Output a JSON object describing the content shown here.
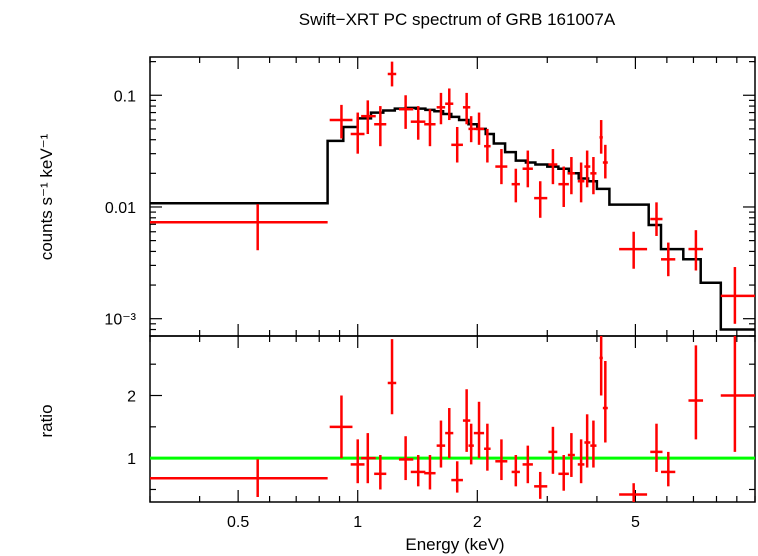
{
  "chart_data": [
    {
      "type": "scatter",
      "title": "Swift−XRT PC spectrum of GRB 161007A",
      "xlabel": "Energy (keV)",
      "ylabel": "counts s⁻¹ keV⁻¹",
      "xscale": "log",
      "yscale": "log",
      "xlim": [
        0.3,
        10
      ],
      "ylim": [
        0.0007,
        0.22
      ],
      "grid": false,
      "x_ticks": [
        "0.5",
        "1",
        "2",
        "5"
      ],
      "y_ticks": [
        "0.1",
        "0.01",
        "10⁻³"
      ],
      "series": [
        {
          "style": "crosses",
          "color": "#ff0000",
          "points": [
            {
              "x": 0.56,
              "xlo": 0.3,
              "xhi": 0.84,
              "y": 0.0073,
              "ylo": 0.0041,
              "yhi": 0.0106
            },
            {
              "x": 0.91,
              "xlo": 0.85,
              "xhi": 0.97,
              "y": 0.06,
              "ylo": 0.041,
              "yhi": 0.082
            },
            {
              "x": 1.0,
              "xlo": 0.96,
              "xhi": 1.04,
              "y": 0.045,
              "ylo": 0.03,
              "yhi": 0.07
            },
            {
              "x": 1.06,
              "xlo": 1.02,
              "xhi": 1.11,
              "y": 0.065,
              "ylo": 0.045,
              "yhi": 0.09
            },
            {
              "x": 1.14,
              "xlo": 1.1,
              "xhi": 1.18,
              "y": 0.055,
              "ylo": 0.035,
              "yhi": 0.08
            },
            {
              "x": 1.22,
              "xlo": 1.19,
              "xhi": 1.25,
              "y": 0.155,
              "ylo": 0.12,
              "yhi": 0.2
            },
            {
              "x": 1.32,
              "xlo": 1.27,
              "xhi": 1.38,
              "y": 0.075,
              "ylo": 0.05,
              "yhi": 0.1
            },
            {
              "x": 1.42,
              "xlo": 1.36,
              "xhi": 1.48,
              "y": 0.058,
              "ylo": 0.04,
              "yhi": 0.08
            },
            {
              "x": 1.52,
              "xlo": 1.47,
              "xhi": 1.57,
              "y": 0.055,
              "ylo": 0.035,
              "yhi": 0.075
            },
            {
              "x": 1.62,
              "xlo": 1.58,
              "xhi": 1.66,
              "y": 0.078,
              "ylo": 0.055,
              "yhi": 0.105
            },
            {
              "x": 1.7,
              "xlo": 1.66,
              "xhi": 1.74,
              "y": 0.084,
              "ylo": 0.06,
              "yhi": 0.115
            },
            {
              "x": 1.78,
              "xlo": 1.72,
              "xhi": 1.84,
              "y": 0.036,
              "ylo": 0.025,
              "yhi": 0.052
            },
            {
              "x": 1.88,
              "xlo": 1.84,
              "xhi": 1.92,
              "y": 0.078,
              "ylo": 0.055,
              "yhi": 0.105
            },
            {
              "x": 1.93,
              "xlo": 1.9,
              "xhi": 1.96,
              "y": 0.05,
              "ylo": 0.038,
              "yhi": 0.065
            },
            {
              "x": 2.02,
              "xlo": 1.96,
              "xhi": 2.08,
              "y": 0.05,
              "ylo": 0.036,
              "yhi": 0.07
            },
            {
              "x": 2.12,
              "xlo": 2.08,
              "xhi": 2.16,
              "y": 0.035,
              "ylo": 0.025,
              "yhi": 0.05
            },
            {
              "x": 2.3,
              "xlo": 2.22,
              "xhi": 2.38,
              "y": 0.023,
              "ylo": 0.016,
              "yhi": 0.033
            },
            {
              "x": 2.5,
              "xlo": 2.44,
              "xhi": 2.56,
              "y": 0.016,
              "ylo": 0.011,
              "yhi": 0.022
            },
            {
              "x": 2.68,
              "xlo": 2.6,
              "xhi": 2.76,
              "y": 0.022,
              "ylo": 0.015,
              "yhi": 0.032
            },
            {
              "x": 2.88,
              "xlo": 2.78,
              "xhi": 3.0,
              "y": 0.012,
              "ylo": 0.008,
              "yhi": 0.017
            },
            {
              "x": 3.1,
              "xlo": 3.02,
              "xhi": 3.18,
              "y": 0.024,
              "ylo": 0.016,
              "yhi": 0.033
            },
            {
              "x": 3.3,
              "xlo": 3.2,
              "xhi": 3.4,
              "y": 0.016,
              "ylo": 0.01,
              "yhi": 0.023
            },
            {
              "x": 3.45,
              "xlo": 3.38,
              "xhi": 3.52,
              "y": 0.02,
              "ylo": 0.013,
              "yhi": 0.028
            },
            {
              "x": 3.65,
              "xlo": 3.58,
              "xhi": 3.72,
              "y": 0.017,
              "ylo": 0.011,
              "yhi": 0.025
            },
            {
              "x": 3.78,
              "xlo": 3.72,
              "xhi": 3.85,
              "y": 0.023,
              "ylo": 0.015,
              "yhi": 0.032
            },
            {
              "x": 3.92,
              "xlo": 3.85,
              "xhi": 3.99,
              "y": 0.02,
              "ylo": 0.013,
              "yhi": 0.028
            },
            {
              "x": 4.1,
              "xlo": 4.06,
              "xhi": 4.14,
              "y": 0.042,
              "ylo": 0.03,
              "yhi": 0.06
            },
            {
              "x": 4.2,
              "xlo": 4.14,
              "xhi": 4.26,
              "y": 0.025,
              "ylo": 0.018,
              "yhi": 0.036
            },
            {
              "x": 4.95,
              "xlo": 4.55,
              "xhi": 5.35,
              "y": 0.0042,
              "ylo": 0.0028,
              "yhi": 0.006
            },
            {
              "x": 5.65,
              "xlo": 5.45,
              "xhi": 5.85,
              "y": 0.0078,
              "ylo": 0.0055,
              "yhi": 0.011
            },
            {
              "x": 6.05,
              "xlo": 5.8,
              "xhi": 6.3,
              "y": 0.0034,
              "ylo": 0.0024,
              "yhi": 0.0048
            },
            {
              "x": 7.1,
              "xlo": 6.8,
              "xhi": 7.4,
              "y": 0.0042,
              "ylo": 0.0027,
              "yhi": 0.0062
            },
            {
              "x": 8.9,
              "xlo": 8.2,
              "xhi": 10.0,
              "y": 0.0016,
              "ylo": 0.0009,
              "yhi": 0.0029
            }
          ]
        },
        {
          "style": "step",
          "color": "#000000",
          "edges": [
            0.3,
            0.84,
            0.92,
            1.0,
            1.08,
            1.16,
            1.24,
            1.32,
            1.4,
            1.48,
            1.56,
            1.64,
            1.72,
            1.8,
            1.9,
            2.0,
            2.1,
            2.2,
            2.35,
            2.5,
            2.65,
            2.8,
            3.0,
            3.2,
            3.4,
            3.6,
            3.8,
            4.0,
            4.3,
            5.4,
            5.8,
            6.6,
            7.3,
            8.2,
            10.0
          ],
          "values": [
            0.0108,
            0.039,
            0.052,
            0.062,
            0.07,
            0.073,
            0.076,
            0.077,
            0.076,
            0.074,
            0.072,
            0.068,
            0.064,
            0.06,
            0.055,
            0.05,
            0.045,
            0.037,
            0.031,
            0.026,
            0.025,
            0.024,
            0.023,
            0.022,
            0.02,
            0.018,
            0.017,
            0.0145,
            0.0105,
            0.0069,
            0.0042,
            0.0034,
            0.0021,
            0.0008
          ]
        }
      ]
    },
    {
      "type": "scatter",
      "xlabel": "Energy (keV)",
      "ylabel": "ratio",
      "xscale": "log",
      "xlim": [
        0.3,
        10
      ],
      "ylim": [
        0.3,
        2.95
      ],
      "y_ticks": [
        "1",
        "2"
      ],
      "reference_line": {
        "y": 1,
        "color": "#00ff00"
      },
      "series": [
        {
          "style": "crosses",
          "color": "#ff0000",
          "points": [
            {
              "x": 0.56,
              "xlo": 0.3,
              "xhi": 0.84,
              "y": 0.68,
              "ylo": 0.38,
              "yhi": 0.98
            },
            {
              "x": 0.91,
              "xlo": 0.85,
              "xhi": 0.97,
              "y": 1.5,
              "ylo": 1.0,
              "yhi": 2.0
            },
            {
              "x": 1.0,
              "xlo": 0.96,
              "xhi": 1.04,
              "y": 0.9,
              "ylo": 0.6,
              "yhi": 1.3
            },
            {
              "x": 1.06,
              "xlo": 1.02,
              "xhi": 1.11,
              "y": 1.0,
              "ylo": 0.6,
              "yhi": 1.4
            },
            {
              "x": 1.14,
              "xlo": 1.1,
              "xhi": 1.18,
              "y": 0.75,
              "ylo": 0.5,
              "yhi": 1.05
            },
            {
              "x": 1.22,
              "xlo": 1.19,
              "xhi": 1.25,
              "y": 2.2,
              "ylo": 1.7,
              "yhi": 2.9
            },
            {
              "x": 1.32,
              "xlo": 1.27,
              "xhi": 1.38,
              "y": 0.98,
              "ylo": 0.65,
              "yhi": 1.35
            },
            {
              "x": 1.42,
              "xlo": 1.36,
              "xhi": 1.48,
              "y": 0.78,
              "ylo": 0.55,
              "yhi": 1.05
            },
            {
              "x": 1.52,
              "xlo": 1.47,
              "xhi": 1.57,
              "y": 0.76,
              "ylo": 0.5,
              "yhi": 1.05
            },
            {
              "x": 1.62,
              "xlo": 1.58,
              "xhi": 1.66,
              "y": 1.2,
              "ylo": 0.85,
              "yhi": 1.6
            },
            {
              "x": 1.7,
              "xlo": 1.66,
              "xhi": 1.74,
              "y": 1.4,
              "ylo": 1.0,
              "yhi": 1.8
            },
            {
              "x": 1.78,
              "xlo": 1.72,
              "xhi": 1.84,
              "y": 0.65,
              "ylo": 0.45,
              "yhi": 0.95
            },
            {
              "x": 1.88,
              "xlo": 1.84,
              "xhi": 1.92,
              "y": 1.6,
              "ylo": 1.1,
              "yhi": 2.1
            },
            {
              "x": 1.93,
              "xlo": 1.9,
              "xhi": 1.96,
              "y": 1.2,
              "ylo": 0.9,
              "yhi": 1.55
            },
            {
              "x": 2.02,
              "xlo": 1.96,
              "xhi": 2.08,
              "y": 1.4,
              "ylo": 1.0,
              "yhi": 1.9
            },
            {
              "x": 2.12,
              "xlo": 2.08,
              "xhi": 2.16,
              "y": 1.15,
              "ylo": 0.8,
              "yhi": 1.55
            },
            {
              "x": 2.3,
              "xlo": 2.22,
              "xhi": 2.38,
              "y": 0.95,
              "ylo": 0.65,
              "yhi": 1.3
            },
            {
              "x": 2.5,
              "xlo": 2.44,
              "xhi": 2.56,
              "y": 0.78,
              "ylo": 0.55,
              "yhi": 1.05
            },
            {
              "x": 2.68,
              "xlo": 2.6,
              "xhi": 2.76,
              "y": 0.9,
              "ylo": 0.6,
              "yhi": 1.2
            },
            {
              "x": 2.88,
              "xlo": 2.78,
              "xhi": 3.0,
              "y": 0.55,
              "ylo": 0.35,
              "yhi": 0.78
            },
            {
              "x": 3.1,
              "xlo": 3.02,
              "xhi": 3.18,
              "y": 1.1,
              "ylo": 0.75,
              "yhi": 1.5
            },
            {
              "x": 3.3,
              "xlo": 3.2,
              "xhi": 3.4,
              "y": 0.75,
              "ylo": 0.48,
              "yhi": 1.05
            },
            {
              "x": 3.45,
              "xlo": 3.38,
              "xhi": 3.52,
              "y": 1.05,
              "ylo": 0.7,
              "yhi": 1.4
            },
            {
              "x": 3.65,
              "xlo": 3.58,
              "xhi": 3.72,
              "y": 0.9,
              "ylo": 0.6,
              "yhi": 1.3
            },
            {
              "x": 3.78,
              "xlo": 3.72,
              "xhi": 3.85,
              "y": 1.25,
              "ylo": 0.85,
              "yhi": 1.7
            },
            {
              "x": 3.92,
              "xlo": 3.85,
              "xhi": 3.99,
              "y": 1.2,
              "ylo": 0.85,
              "yhi": 1.6
            },
            {
              "x": 4.1,
              "xlo": 4.06,
              "xhi": 4.14,
              "y": 2.6,
              "ylo": 2.0,
              "yhi": 2.95
            },
            {
              "x": 4.2,
              "xlo": 4.14,
              "xhi": 4.26,
              "y": 1.8,
              "ylo": 1.25,
              "yhi": 2.55
            },
            {
              "x": 4.95,
              "xlo": 4.55,
              "xhi": 5.35,
              "y": 0.42,
              "ylo": 0.3,
              "yhi": 0.6
            },
            {
              "x": 5.65,
              "xlo": 5.45,
              "xhi": 5.85,
              "y": 1.1,
              "ylo": 0.78,
              "yhi": 1.55
            },
            {
              "x": 6.05,
              "xlo": 5.8,
              "xhi": 6.3,
              "y": 0.78,
              "ylo": 0.55,
              "yhi": 1.1
            },
            {
              "x": 7.1,
              "xlo": 6.8,
              "xhi": 7.4,
              "y": 1.92,
              "ylo": 1.3,
              "yhi": 2.8
            },
            {
              "x": 8.9,
              "xlo": 8.2,
              "xhi": 10.0,
              "y": 2.0,
              "ylo": 1.1,
              "yhi": 2.95
            }
          ]
        }
      ]
    }
  ]
}
